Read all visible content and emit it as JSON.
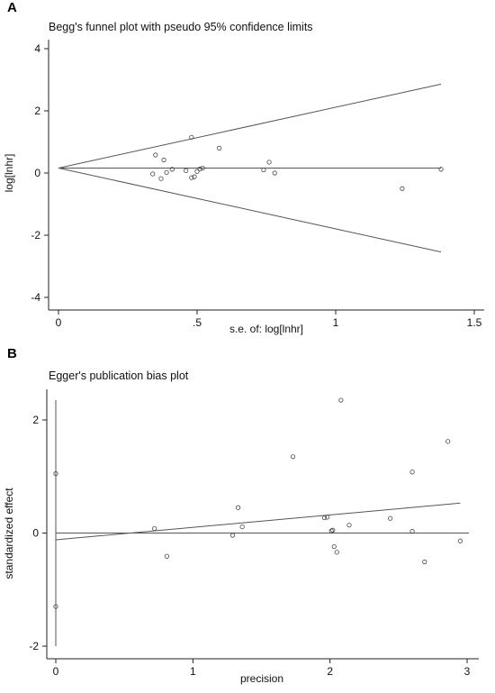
{
  "chart_data": [
    {
      "panel": "A",
      "type": "scatter",
      "title": "Begg's funnel plot with pseudo 95% confidence limits",
      "xlabel": "s.e. of: log[lnhr]",
      "ylabel": "log[lnhr]",
      "xlim": [
        0,
        1.5
      ],
      "ylim": [
        -4,
        4
      ],
      "xticks": [
        0,
        0.5,
        1,
        1.5
      ],
      "xtick_labels": [
        "0",
        ".5",
        "1",
        "1.5"
      ],
      "yticks": [
        -4,
        -2,
        0,
        2,
        4
      ],
      "ytick_labels": [
        "-4",
        "-2",
        "0",
        "2",
        "4"
      ],
      "pooled_estimate": 0.16,
      "pseudo_ci_limits": {
        "x": [
          0,
          1.38
        ],
        "upper": [
          0.16,
          2.86
        ],
        "lower": [
          0.16,
          -2.54
        ]
      },
      "points": [
        {
          "x": 0.34,
          "y": -0.03
        },
        {
          "x": 0.35,
          "y": 0.58
        },
        {
          "x": 0.37,
          "y": -0.18
        },
        {
          "x": 0.38,
          "y": 0.42
        },
        {
          "x": 0.39,
          "y": 0.02
        },
        {
          "x": 0.41,
          "y": 0.12
        },
        {
          "x": 0.46,
          "y": 0.08
        },
        {
          "x": 0.48,
          "y": 1.15
        },
        {
          "x": 0.48,
          "y": -0.15
        },
        {
          "x": 0.49,
          "y": -0.12
        },
        {
          "x": 0.5,
          "y": 0.05
        },
        {
          "x": 0.51,
          "y": 0.13
        },
        {
          "x": 0.52,
          "y": 0.16
        },
        {
          "x": 0.58,
          "y": 0.8
        },
        {
          "x": 0.74,
          "y": 0.1
        },
        {
          "x": 0.76,
          "y": 0.35
        },
        {
          "x": 0.78,
          "y": 0.0
        },
        {
          "x": 1.24,
          "y": -0.5
        },
        {
          "x": 1.38,
          "y": 0.12
        }
      ]
    },
    {
      "panel": "B",
      "type": "scatter",
      "title": "Egger's publication bias plot",
      "xlabel": "precision",
      "ylabel": "standardized effect",
      "xlim": [
        0,
        3
      ],
      "ylim": [
        -2,
        2
      ],
      "xticks": [
        0,
        1,
        2,
        3
      ],
      "xtick_labels": [
        "0",
        "1",
        "2",
        "3"
      ],
      "yticks": [
        -2,
        0,
        2
      ],
      "ytick_labels": [
        "-2",
        "0",
        "2"
      ],
      "regression_line": {
        "x": [
          0,
          2.95
        ],
        "y": [
          -0.12,
          0.53
        ]
      },
      "intercept_ci": [
        -2.0,
        2.35
      ],
      "zero_line": 0,
      "points": [
        {
          "x": 0.0,
          "y": 1.05
        },
        {
          "x": 0.0,
          "y": -1.3
        },
        {
          "x": 0.72,
          "y": 0.08
        },
        {
          "x": 0.81,
          "y": -0.41
        },
        {
          "x": 1.29,
          "y": -0.04
        },
        {
          "x": 1.33,
          "y": 0.45
        },
        {
          "x": 1.36,
          "y": 0.11
        },
        {
          "x": 1.73,
          "y": 1.35
        },
        {
          "x": 1.96,
          "y": 0.27
        },
        {
          "x": 1.98,
          "y": 0.28
        },
        {
          "x": 2.01,
          "y": 0.04
        },
        {
          "x": 2.02,
          "y": 0.05
        },
        {
          "x": 2.03,
          "y": -0.24
        },
        {
          "x": 2.05,
          "y": -0.34
        },
        {
          "x": 2.08,
          "y": 2.35
        },
        {
          "x": 2.14,
          "y": 0.14
        },
        {
          "x": 2.44,
          "y": 0.26
        },
        {
          "x": 2.6,
          "y": 1.08
        },
        {
          "x": 2.6,
          "y": 0.03
        },
        {
          "x": 2.69,
          "y": -0.51
        },
        {
          "x": 2.86,
          "y": 1.62
        },
        {
          "x": 2.95,
          "y": -0.14
        }
      ]
    }
  ]
}
